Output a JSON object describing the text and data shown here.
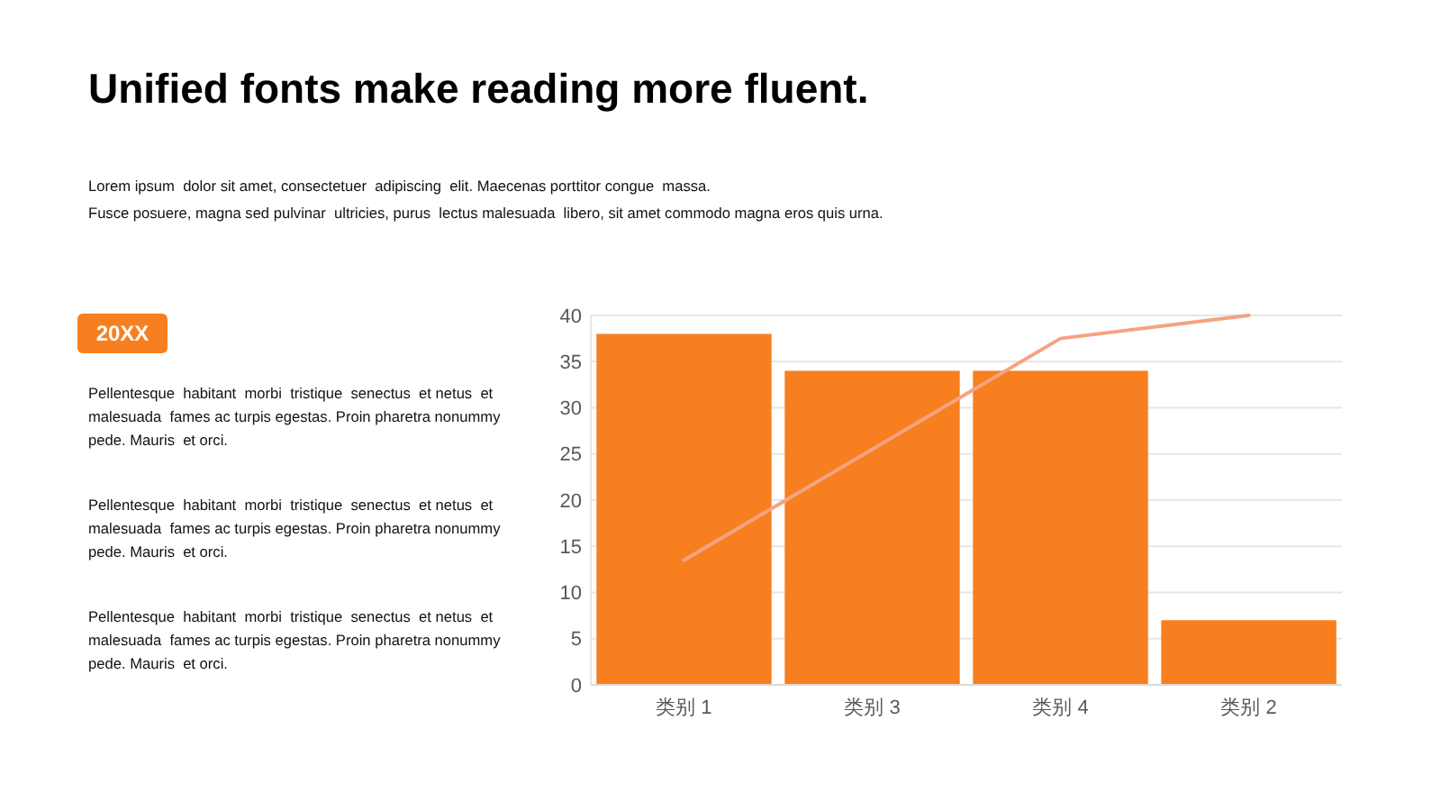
{
  "chart_data": {
    "type": "bar",
    "title": "Unified fonts make reading more fluent.",
    "subtitle": "Lorem ipsum  dolor sit amet, consectetuer  adipiscing  elit. Maecenas porttitor congue  massa.\nFusce posuere, magna sed pulvinar  ultricies, purus  lectus malesuada  libero, sit amet commodo magna eros quis urna.",
    "annotations": [
      "20XX",
      "Pellentesque  habitant  morbi  tristique  senectus  et netus  et malesuada  fames ac turpis egestas. Proin pharetra nonummy pede. Mauris  et orci.",
      "Pellentesque  habitant  morbi  tristique  senectus  et netus  et malesuada  fames ac turpis egestas. Proin pharetra nonummy pede. Mauris  et orci.",
      "Pellentesque  habitant  morbi  tristique  senectus  et netus  et malesuada  fames ac turpis egestas. Proin pharetra nonummy pede. Mauris  et orci."
    ],
    "categories": [
      "类别 1",
      "类别 3",
      "类别 4",
      "类别 2"
    ],
    "series": [
      {
        "color": "#f77f1f",
        "values": [
          38,
          34,
          34,
          7
        ]
      },
      {
        "type": "line",
        "color": "#f5a380",
        "values": [
          13.5,
          25.5,
          37.5,
          40
        ]
      }
    ],
    "ylim": [
      0,
      40
    ],
    "yticks": [
      0,
      5,
      10,
      15,
      20,
      25,
      30,
      35,
      40
    ],
    "grid": "y"
  }
}
